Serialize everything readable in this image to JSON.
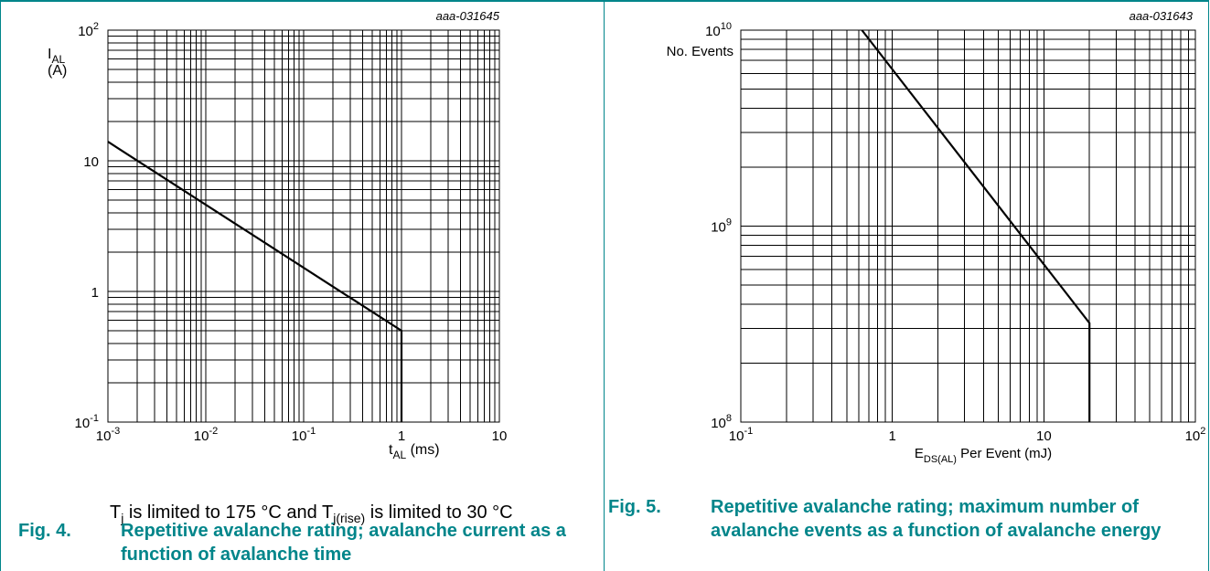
{
  "chart_data": [
    {
      "type": "line",
      "id": "aaa-031645",
      "xscale": "log",
      "yscale": "log",
      "xlim": [
        0.001,
        10
      ],
      "ylim": [
        0.1,
        100
      ],
      "xlabel": "t_AL (ms)",
      "ylabel": "I_AL (A)",
      "grid": true,
      "x_ticks": [
        {
          "b": "10",
          "e": "-3"
        },
        {
          "b": "10",
          "e": "-2"
        },
        {
          "b": "10",
          "e": "-1"
        },
        {
          "b": "1",
          "e": ""
        },
        {
          "b": "10",
          "e": ""
        }
      ],
      "y_ticks": [
        {
          "b": "10",
          "e": "-1"
        },
        {
          "b": "1",
          "e": ""
        },
        {
          "b": "10",
          "e": ""
        },
        {
          "b": "10",
          "e": "2"
        }
      ],
      "series": [
        {
          "points": [
            [
              0.001,
              14
            ],
            [
              1,
              0.5
            ],
            [
              1,
              0.1
            ]
          ]
        }
      ]
    },
    {
      "type": "line",
      "id": "aaa-031643",
      "xscale": "log",
      "yscale": "log",
      "xlim": [
        0.1,
        100
      ],
      "ylim": [
        100000000,
        10000000000
      ],
      "xlabel": "E_DS(AL) Per Event (mJ)",
      "ylabel": "No. Events",
      "grid": true,
      "x_ticks": [
        {
          "b": "10",
          "e": "-1"
        },
        {
          "b": "1",
          "e": ""
        },
        {
          "b": "10",
          "e": ""
        },
        {
          "b": "10",
          "e": "2"
        }
      ],
      "y_ticks": [
        {
          "b": "10",
          "e": "8"
        },
        {
          "b": "10",
          "e": "9"
        },
        {
          "b": "10",
          "e": "10"
        }
      ],
      "series": [
        {
          "points": [
            [
              0.63,
              10000000000
            ],
            [
              20,
              320000000
            ],
            [
              20,
              100000000
            ]
          ]
        }
      ]
    }
  ],
  "fig4": {
    "id_label": "aaa-031645",
    "ylabel_main": "I",
    "ylabel_sub": "AL",
    "ylabel_unit": "(A)",
    "xlabel_main": "t",
    "xlabel_sub": "AL",
    "xlabel_unit": " (ms)",
    "note": {
      "p1": "T",
      "s1": "j",
      "p2": " is limited to 175 °C and T",
      "s2": "j(rise)",
      "p3": " is limited to 30 °C"
    },
    "fig_label": "Fig. 4.",
    "caption": "Repetitive avalanche rating; avalanche current as a function of avalanche time"
  },
  "fig5": {
    "id_label": "aaa-031643",
    "ylabel": "No. Events",
    "xlabel_main": "E",
    "xlabel_sub": "DS(AL)",
    "xlabel_rest": " Per Event  (mJ)",
    "fig_label": "Fig. 5.",
    "caption": "Repetitive avalanche rating; maximum number of avalanche events as a function of avalanche energy"
  },
  "colors": {
    "accent": "#00858a",
    "grid": "#000000",
    "curve": "#000000"
  }
}
